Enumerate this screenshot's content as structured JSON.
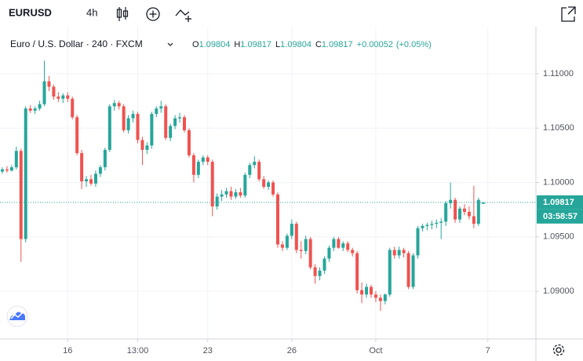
{
  "header": {
    "symbol": "EURUSD",
    "interval": "4h"
  },
  "chart_data": {
    "type": "candlestick",
    "title": "Euro / U.S. Dollar · 240 · FXCM",
    "legend_keys": [
      "O",
      "H",
      "L",
      "C"
    ],
    "change": "+0.00052",
    "change_percent": "(+0.05%)",
    "countdown": "03:58:57",
    "up_color": "#26a69a",
    "down_color": "#ef5350",
    "grid": true,
    "open": [
      1.101,
      1.1012,
      1.1011,
      1.1014,
      1.1029,
      1.0948,
      1.1068,
      1.1066,
      1.1068,
      1.1072,
      1.1093,
      1.1088,
      1.1079,
      1.1077,
      1.108,
      1.1077,
      1.106,
      1.1027,
      1.1001,
      1.1003,
      1.0999,
      1.1008,
      1.1014,
      1.103,
      1.107,
      1.1073,
      1.107,
      1.1048,
      1.1059,
      1.1063,
      1.1039,
      1.103,
      1.1034,
      1.1063,
      1.1068,
      1.107,
      1.1041,
      1.1052,
      1.1059,
      1.106,
      1.1048,
      1.1025,
      1.1007,
      1.1019,
      1.1023,
      1.1019,
      1.0978,
      1.0987,
      1.0989,
      1.0992,
      1.0987,
      1.0991,
      1.0988,
      1.1007,
      1.1016,
      1.1019,
      1.1003,
      1.0996,
      1.1,
      1.0989,
      1.0943,
      1.094,
      1.0951,
      1.0962,
      1.0938,
      1.0937,
      1.0948,
      1.0922,
      1.0914,
      1.0919,
      1.093,
      1.094,
      1.0948,
      1.094,
      1.0944,
      1.0938,
      1.0935,
      1.0901,
      1.0897,
      1.0904,
      1.0897,
      1.0894,
      1.0891,
      1.0897,
      1.0938,
      1.0933,
      1.0938,
      1.0935,
      1.0904,
      1.0933,
      1.0958,
      1.096,
      1.0961,
      1.0962,
      1.0963,
      1.0964,
      1.0981,
      1.0984,
      1.0966,
      1.0976,
      1.0973,
      1.0969,
      1.0962,
      1.09804
    ],
    "high": [
      1.1014,
      1.1015,
      1.1016,
      1.1033,
      1.1031,
      1.107,
      1.1071,
      1.107,
      1.1075,
      1.1112,
      1.1098,
      1.109,
      1.1083,
      1.1082,
      1.1083,
      1.1079,
      1.1062,
      1.103,
      1.1006,
      1.1007,
      1.1011,
      1.1016,
      1.1032,
      1.1072,
      1.1076,
      1.1075,
      1.1072,
      1.1062,
      1.1066,
      1.1065,
      1.1042,
      1.1037,
      1.1065,
      1.107,
      1.1075,
      1.1072,
      1.1054,
      1.1062,
      1.1064,
      1.1062,
      1.105,
      1.1027,
      1.1021,
      1.1025,
      1.1025,
      1.1021,
      1.099,
      1.0993,
      1.0995,
      1.0996,
      1.0994,
      1.0995,
      1.1009,
      1.1018,
      1.1024,
      1.1021,
      1.1006,
      1.1002,
      1.1002,
      1.0991,
      1.0946,
      1.0953,
      1.0966,
      1.0964,
      1.0946,
      1.0951,
      1.095,
      1.0925,
      1.0922,
      1.0932,
      1.0942,
      1.095,
      1.095,
      1.0946,
      1.0946,
      1.094,
      1.0937,
      1.0908,
      1.0907,
      1.0906,
      1.09,
      1.0897,
      1.0898,
      1.094,
      1.0941,
      1.0941,
      1.094,
      1.0937,
      1.0935,
      1.096,
      1.0962,
      1.0963,
      1.0965,
      1.0966,
      1.0967,
      1.0983,
      1.1,
      1.0986,
      1.0978,
      1.098,
      1.0978,
      1.0997,
      1.0986,
      1.09817
    ],
    "low": [
      1.1008,
      1.1009,
      1.101,
      1.1012,
      1.0927,
      1.0945,
      1.1064,
      1.1063,
      1.1066,
      1.107,
      1.1084,
      1.1076,
      1.1074,
      1.1073,
      1.1074,
      1.1058,
      1.1025,
      1.0994,
      1.0996,
      1.0997,
      1.0996,
      1.1005,
      1.1011,
      1.1028,
      1.1066,
      1.1067,
      1.1046,
      1.1045,
      1.1055,
      1.1036,
      1.1016,
      1.1026,
      1.1031,
      1.106,
      1.1064,
      1.1039,
      1.1038,
      1.1049,
      1.1055,
      1.1046,
      1.1023,
      1.1,
      1.1004,
      1.1016,
      1.1016,
      1.0969,
      1.0975,
      1.0983,
      1.0986,
      1.0984,
      1.0985,
      1.0986,
      1.0986,
      1.1004,
      1.1013,
      1.1001,
      1.0994,
      1.0993,
      1.0987,
      1.094,
      1.0937,
      1.0938,
      1.0948,
      1.0935,
      1.093,
      1.0934,
      1.092,
      1.0907,
      1.091,
      1.0916,
      1.0927,
      1.0937,
      1.0939,
      1.0937,
      1.0936,
      1.0932,
      1.0898,
      1.0889,
      1.0894,
      1.0894,
      1.089,
      1.0882,
      1.0888,
      1.0895,
      1.093,
      1.093,
      1.0931,
      1.0902,
      1.0902,
      1.093,
      1.0955,
      1.0956,
      1.0957,
      1.0958,
      1.0948,
      1.096,
      1.0976,
      1.0963,
      1.0963,
      1.097,
      1.0966,
      1.0958,
      1.096,
      1.09804
    ],
    "close": [
      1.1012,
      1.1011,
      1.1014,
      1.1029,
      1.0948,
      1.1068,
      1.1066,
      1.1068,
      1.1072,
      1.1093,
      1.1088,
      1.1079,
      1.1077,
      1.108,
      1.1077,
      1.106,
      1.1027,
      1.1001,
      1.1003,
      1.0999,
      1.1008,
      1.1014,
      1.103,
      1.107,
      1.1073,
      1.107,
      1.1048,
      1.1059,
      1.1063,
      1.1039,
      1.103,
      1.1034,
      1.1063,
      1.1068,
      1.107,
      1.1041,
      1.1052,
      1.1059,
      1.106,
      1.1048,
      1.1025,
      1.1007,
      1.1019,
      1.1023,
      1.1019,
      1.0978,
      1.0987,
      1.0989,
      1.0992,
      1.0987,
      1.0991,
      1.0988,
      1.1007,
      1.1016,
      1.1019,
      1.1003,
      1.0996,
      1.1,
      1.0989,
      1.0943,
      1.094,
      1.0951,
      1.0962,
      1.0938,
      1.0937,
      1.0948,
      1.0922,
      1.0914,
      1.0919,
      1.093,
      1.094,
      1.0948,
      1.094,
      1.0944,
      1.0938,
      1.0935,
      1.0901,
      1.0897,
      1.0904,
      1.0897,
      1.0894,
      1.0891,
      1.0897,
      1.0938,
      1.0933,
      1.0938,
      1.0935,
      1.0904,
      1.0933,
      1.0958,
      1.096,
      1.0961,
      1.0962,
      1.0963,
      1.0964,
      1.0981,
      1.0984,
      1.0966,
      1.0976,
      1.0973,
      1.0969,
      1.0962,
      1.0984,
      1.09817
    ],
    "xlim": [
      -0.5,
      114.3
    ],
    "xticks": [
      {
        "value": 14,
        "label": "16"
      },
      {
        "value": 29,
        "label": "13:00"
      },
      {
        "value": 44,
        "label": "23"
      },
      {
        "value": 62,
        "label": "26"
      },
      {
        "value": 80,
        "label": "Oct"
      },
      {
        "value": 104,
        "label": "7"
      }
    ],
    "ylim": [
      1.08561,
      1.11432
    ],
    "yticks": [
      {
        "value": 1.09,
        "label": "1.09000"
      },
      {
        "value": 1.095,
        "label": "1.09500"
      },
      {
        "value": 1.1,
        "label": "1.10000"
      },
      {
        "value": 1.105,
        "label": "1.10500"
      },
      {
        "value": 1.11,
        "label": "1.11000"
      }
    ]
  }
}
